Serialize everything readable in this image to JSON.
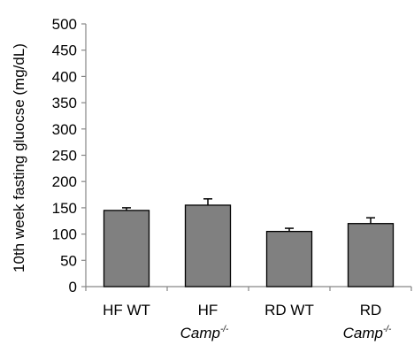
{
  "chart_data": {
    "type": "bar",
    "categories": [
      {
        "line1": "HF WT",
        "line2": "",
        "sup": ""
      },
      {
        "line1": "HF",
        "line2": "Camp",
        "sup": "-/-"
      },
      {
        "line1": "RD WT",
        "line2": "",
        "sup": ""
      },
      {
        "line1": "RD",
        "line2": "Camp",
        "sup": "-/-"
      }
    ],
    "series": [
      {
        "values": [
          145,
          155,
          105,
          120
        ],
        "errors": [
          5,
          12,
          6,
          11
        ]
      }
    ],
    "ylabel": "10th week fasting gluocse (mg/dL)",
    "xlabel": "",
    "title": "",
    "ylim": [
      0,
      500
    ],
    "yticks": [
      0,
      50,
      100,
      150,
      200,
      250,
      300,
      350,
      400,
      450,
      500
    ],
    "grid": false,
    "legend": "none",
    "colors": {
      "bar_fill": "#808080",
      "bar_stroke": "#000000",
      "axis": "#868686"
    }
  }
}
